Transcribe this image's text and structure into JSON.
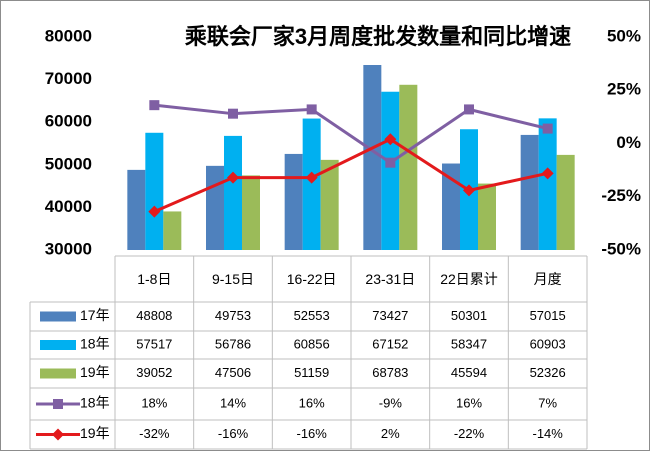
{
  "chart_data": {
    "type": "bar",
    "title": "乘联会厂家3月周度批发数量和同比增速",
    "categories": [
      "1-8日",
      "9-15日",
      "16-22日",
      "23-31日",
      "22日累计",
      "月度"
    ],
    "series": [
      {
        "name": "17年",
        "type": "bar",
        "color": "#4f81bd",
        "values": [
          48808,
          49753,
          52553,
          73427,
          50301,
          57015
        ]
      },
      {
        "name": "18年",
        "type": "bar",
        "color": "#00b0f0",
        "values": [
          57517,
          56786,
          60856,
          67152,
          58347,
          60903
        ]
      },
      {
        "name": "19年",
        "type": "bar",
        "color": "#9bbb59",
        "values": [
          39052,
          47506,
          51159,
          68783,
          45594,
          52326
        ]
      },
      {
        "name": "18年",
        "type": "line",
        "axis": "y2",
        "marker": "square",
        "color": "#7f5fa3",
        "values": [
          18,
          14,
          16,
          -9,
          16,
          7
        ],
        "value_labels": [
          "18%",
          "14%",
          "16%",
          "-9%",
          "16%",
          "7%"
        ]
      },
      {
        "name": "19年",
        "type": "line",
        "axis": "y2",
        "marker": "diamond",
        "color": "#e31a1c",
        "values": [
          -32,
          -16,
          -16,
          2,
          -22,
          -14
        ],
        "value_labels": [
          "-32%",
          "-16%",
          "-16%",
          "2%",
          "-22%",
          "-14%"
        ]
      }
    ],
    "ylim": [
      30000,
      80000
    ],
    "yticks": [
      30000,
      40000,
      50000,
      60000,
      70000,
      80000
    ],
    "y2lim": [
      -50,
      50
    ],
    "y2ticks": [
      {
        "value": -50,
        "label": "-50%"
      },
      {
        "value": -25,
        "label": "-25%"
      },
      {
        "value": 0,
        "label": "0%"
      },
      {
        "value": 25,
        "label": "25%"
      },
      {
        "value": 50,
        "label": "50%"
      }
    ]
  }
}
